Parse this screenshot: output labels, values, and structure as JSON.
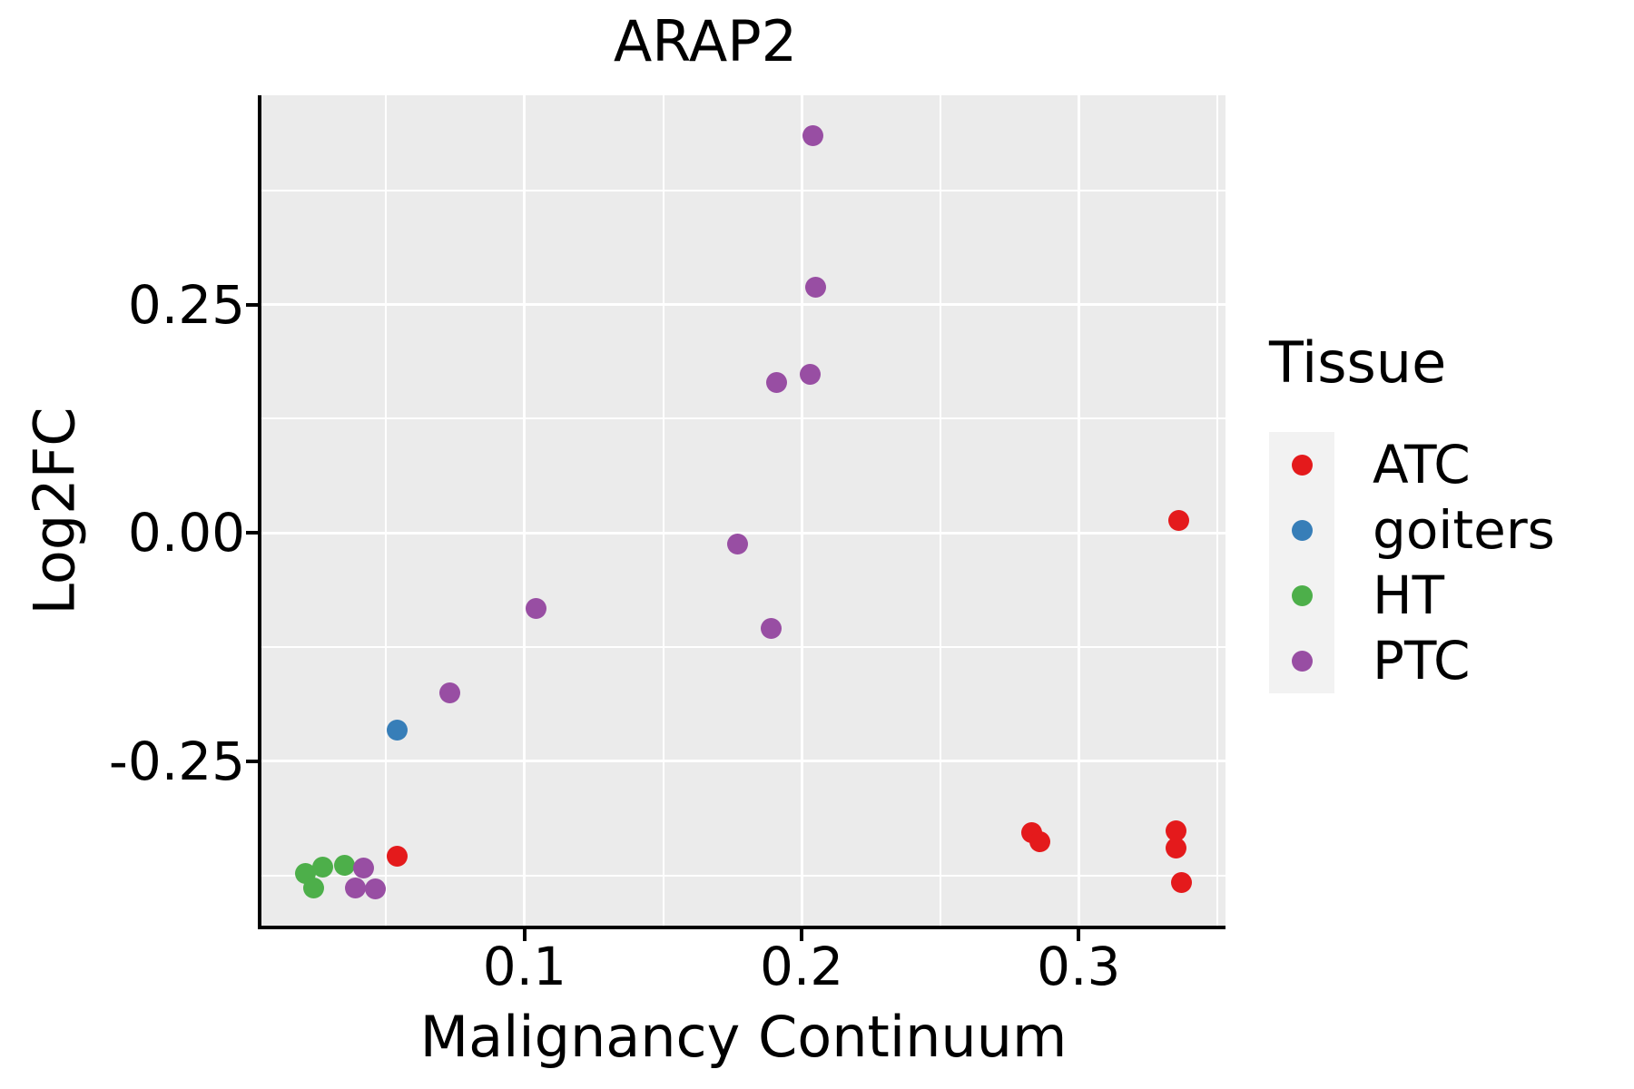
{
  "figure": {
    "background": "#FFFFFF",
    "panel_background": "#EBEBEB",
    "gridline_color": "#FFFFFF",
    "axis_color": "#000000",
    "text_color": "#000000"
  },
  "chart_data": {
    "type": "scatter",
    "title": "ARAP2",
    "xlabel": "Malignancy Continuum",
    "ylabel": "Log2FC",
    "grid": "on",
    "legend": {
      "title": "Tissue",
      "position": "right"
    },
    "xlim": [
      0.005,
      0.353
    ],
    "ylim": [
      -0.43,
      0.479
    ],
    "x_ticks": {
      "values": [
        0.1,
        0.2,
        0.3
      ],
      "labels": [
        "0.1",
        "0.2",
        "0.3"
      ]
    },
    "y_ticks": {
      "values": [
        0.25,
        0.0,
        -0.25
      ],
      "labels": [
        "0.25",
        "0.00",
        "-0.25"
      ]
    },
    "x_minor_ticks": [
      0.05,
      0.15,
      0.25,
      0.35
    ],
    "y_minor_ticks": [
      0.375,
      0.125,
      -0.125,
      -0.375
    ],
    "series": [
      {
        "name": "ATC",
        "color": "#E41A1C",
        "points": [
          [
            0.336,
            0.014
          ],
          [
            0.283,
            -0.328
          ],
          [
            0.286,
            -0.338
          ],
          [
            0.335,
            -0.326
          ],
          [
            0.335,
            -0.345
          ],
          [
            0.337,
            -0.383
          ],
          [
            0.054,
            -0.354
          ]
        ]
      },
      {
        "name": "goiters",
        "color": "#377EB8",
        "points": [
          [
            0.054,
            -0.216
          ]
        ]
      },
      {
        "name": "HT",
        "color": "#4DAF4A",
        "points": [
          [
            0.021,
            -0.373
          ],
          [
            0.027,
            -0.366
          ],
          [
            0.024,
            -0.389
          ],
          [
            0.035,
            -0.364
          ]
        ]
      },
      {
        "name": "PTC",
        "color": "#984EA3",
        "points": [
          [
            0.204,
            0.435
          ],
          [
            0.205,
            0.269
          ],
          [
            0.191,
            0.165
          ],
          [
            0.203,
            0.174
          ],
          [
            0.177,
            -0.012
          ],
          [
            0.104,
            -0.083
          ],
          [
            0.189,
            -0.105
          ],
          [
            0.073,
            -0.175
          ],
          [
            0.042,
            -0.367
          ],
          [
            0.039,
            -0.389
          ],
          [
            0.046,
            -0.39
          ]
        ]
      }
    ]
  }
}
